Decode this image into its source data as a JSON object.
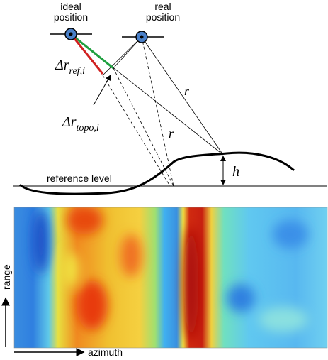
{
  "labels": {
    "ideal_position": [
      "ideal",
      "position"
    ],
    "real_position": [
      "real",
      "position"
    ],
    "delta_r_ref": {
      "symbol": "Δr",
      "subscript": "ref,i"
    },
    "delta_r_topo": {
      "symbol": "Δr",
      "subscript": "topo,i"
    },
    "r_labels": [
      "r",
      "r"
    ],
    "h": "h",
    "reference_level": "reference level"
  },
  "image": {
    "y_axis": "range",
    "x_axis": "azimuth"
  }
}
